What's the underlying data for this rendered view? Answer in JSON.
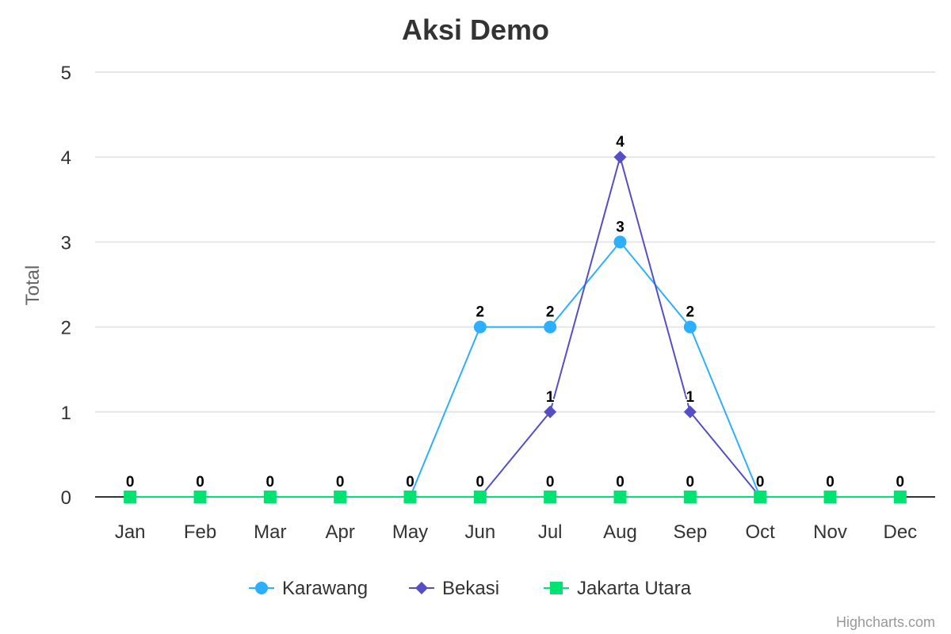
{
  "chart_data": {
    "type": "line",
    "title": "Aksi Demo",
    "ylabel": "Total",
    "xlabel": "",
    "ylim": [
      0,
      5
    ],
    "yticks": [
      0,
      1,
      2,
      3,
      4,
      5
    ],
    "grid": true,
    "legend": "bottom-center",
    "categories": [
      "Jan",
      "Feb",
      "Mar",
      "Apr",
      "May",
      "Jun",
      "Jul",
      "Aug",
      "Sep",
      "Oct",
      "Nov",
      "Dec"
    ],
    "series": [
      {
        "name": "Karawang",
        "color": "#2caffe",
        "marker": "circle",
        "values": [
          0,
          0,
          0,
          0,
          0,
          2,
          2,
          3,
          2,
          0,
          0,
          0
        ]
      },
      {
        "name": "Bekasi",
        "color": "#544fc5",
        "marker": "diamond",
        "values": [
          0,
          0,
          0,
          0,
          0,
          0,
          1,
          4,
          1,
          0,
          0,
          0
        ]
      },
      {
        "name": "Jakarta Utara",
        "color": "#00e272",
        "marker": "square",
        "values": [
          0,
          0,
          0,
          0,
          0,
          0,
          0,
          0,
          0,
          0,
          0,
          0
        ]
      }
    ]
  },
  "credits": "Highcharts.com"
}
